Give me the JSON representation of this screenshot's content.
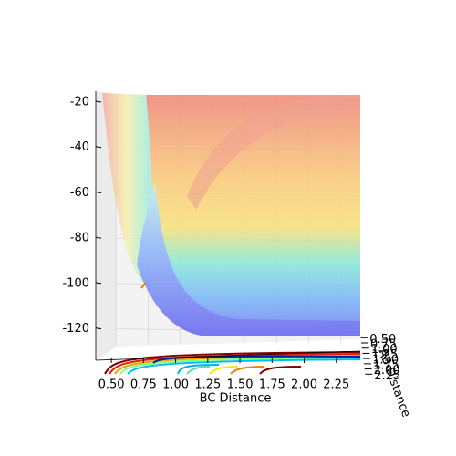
{
  "chart_data": {
    "type": "surface3d",
    "xlabel": "BC Distance",
    "ylabel": "AB Distance",
    "xlim": [
      0.4,
      2.5
    ],
    "xticks": [
      {
        "value": 0.5,
        "label": "0.50"
      },
      {
        "value": 0.75,
        "label": "0.75"
      },
      {
        "value": 1.0,
        "label": "1.00"
      },
      {
        "value": 1.25,
        "label": "1.25"
      },
      {
        "value": 1.5,
        "label": "1.50"
      },
      {
        "value": 1.75,
        "label": "1.75"
      },
      {
        "value": 2.0,
        "label": "2.00"
      },
      {
        "value": 2.25,
        "label": "2.25"
      }
    ],
    "ylim": [
      0.4,
      2.5
    ],
    "yticks": [
      {
        "value": 0.5,
        "label": "0.50"
      },
      {
        "value": 0.75,
        "label": "0.75"
      },
      {
        "value": 1.0,
        "label": "1.00"
      },
      {
        "value": 1.25,
        "label": "1.25"
      },
      {
        "value": 1.5,
        "label": "1.50"
      },
      {
        "value": 1.75,
        "label": "1.75"
      },
      {
        "value": 2.0,
        "label": "2.00"
      },
      {
        "value": 2.25,
        "label": "2.25"
      }
    ],
    "zlim": [
      -133,
      -18
    ],
    "zticks": [
      -20,
      -40,
      -60,
      -80,
      -100,
      -120
    ],
    "colormap": "jet",
    "grid": true
  }
}
